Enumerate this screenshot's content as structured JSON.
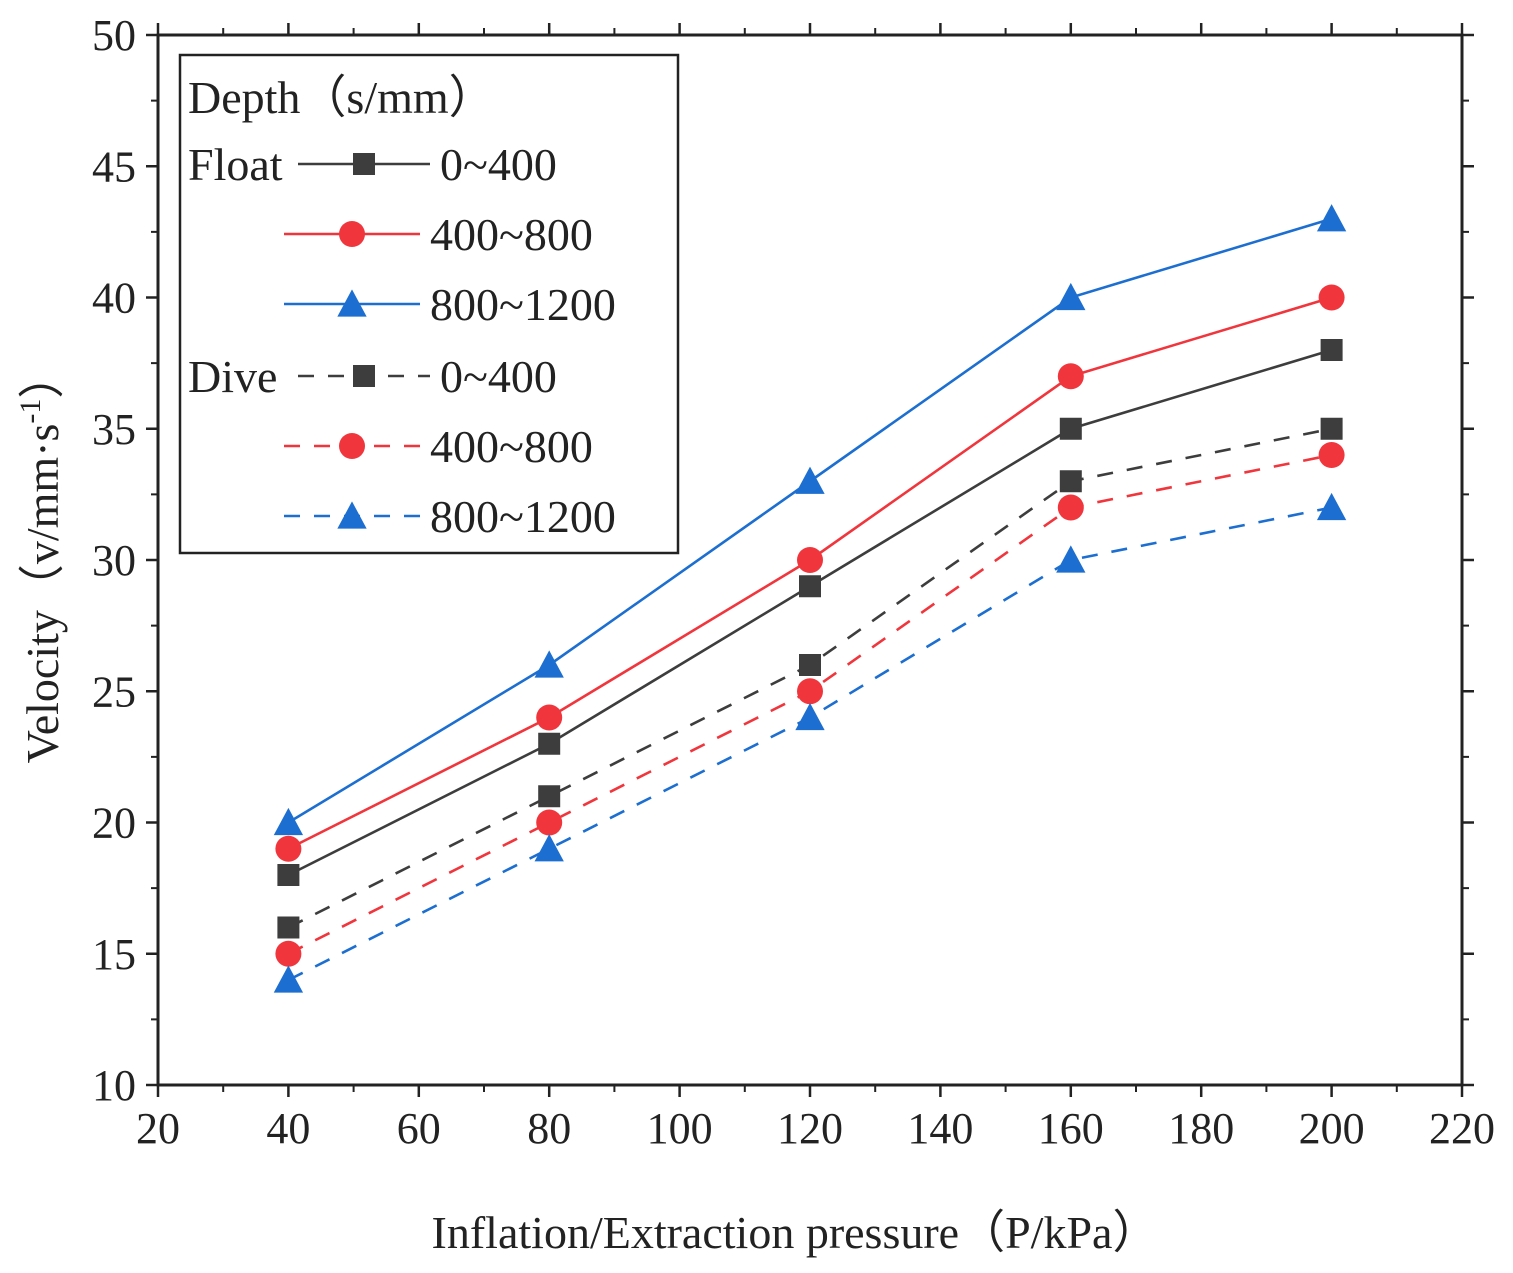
{
  "chart_data": {
    "type": "line",
    "title": "",
    "xlabel": "Inflation/Extraction pressure（P/kPa）",
    "ylabel": "Velocity（v/mm·s",
    "ylabel_superscript": "-1",
    "ylabel_close": "）",
    "xlim": [
      20,
      220
    ],
    "ylim": [
      10,
      50
    ],
    "x_ticks": [
      20,
      40,
      60,
      80,
      100,
      120,
      140,
      160,
      180,
      200,
      220
    ],
    "y_ticks": [
      10,
      15,
      20,
      25,
      30,
      35,
      40,
      45,
      50
    ],
    "x": [
      40,
      80,
      120,
      160,
      200
    ],
    "grid": false,
    "legend": {
      "title": "Depth（s/mm）",
      "placement": "top-left",
      "groups": [
        "Float",
        "Dive"
      ]
    },
    "series": [
      {
        "group": "Float",
        "name": "0~400",
        "color": "#3d3d3d",
        "marker": "square",
        "line": "solid",
        "values": [
          18,
          23,
          29,
          35,
          38
        ]
      },
      {
        "group": "Float",
        "name": "400~800",
        "color": "#f0363c",
        "marker": "circle",
        "line": "solid",
        "values": [
          19,
          24,
          30,
          37,
          40
        ]
      },
      {
        "group": "Float",
        "name": "800~1200",
        "color": "#1c6fd0",
        "marker": "triangle",
        "line": "solid",
        "values": [
          20,
          26,
          33,
          40,
          43
        ]
      },
      {
        "group": "Dive",
        "name": "0~400",
        "color": "#3d3d3d",
        "marker": "square",
        "line": "dashed",
        "values": [
          16,
          21,
          26,
          33,
          35
        ]
      },
      {
        "group": "Dive",
        "name": "400~800",
        "color": "#f0363c",
        "marker": "circle",
        "line": "dashed",
        "values": [
          15,
          20,
          25,
          32,
          34
        ]
      },
      {
        "group": "Dive",
        "name": "800~1200",
        "color": "#1c6fd0",
        "marker": "triangle",
        "line": "dashed",
        "values": [
          14,
          19,
          24,
          30,
          32
        ]
      }
    ]
  }
}
